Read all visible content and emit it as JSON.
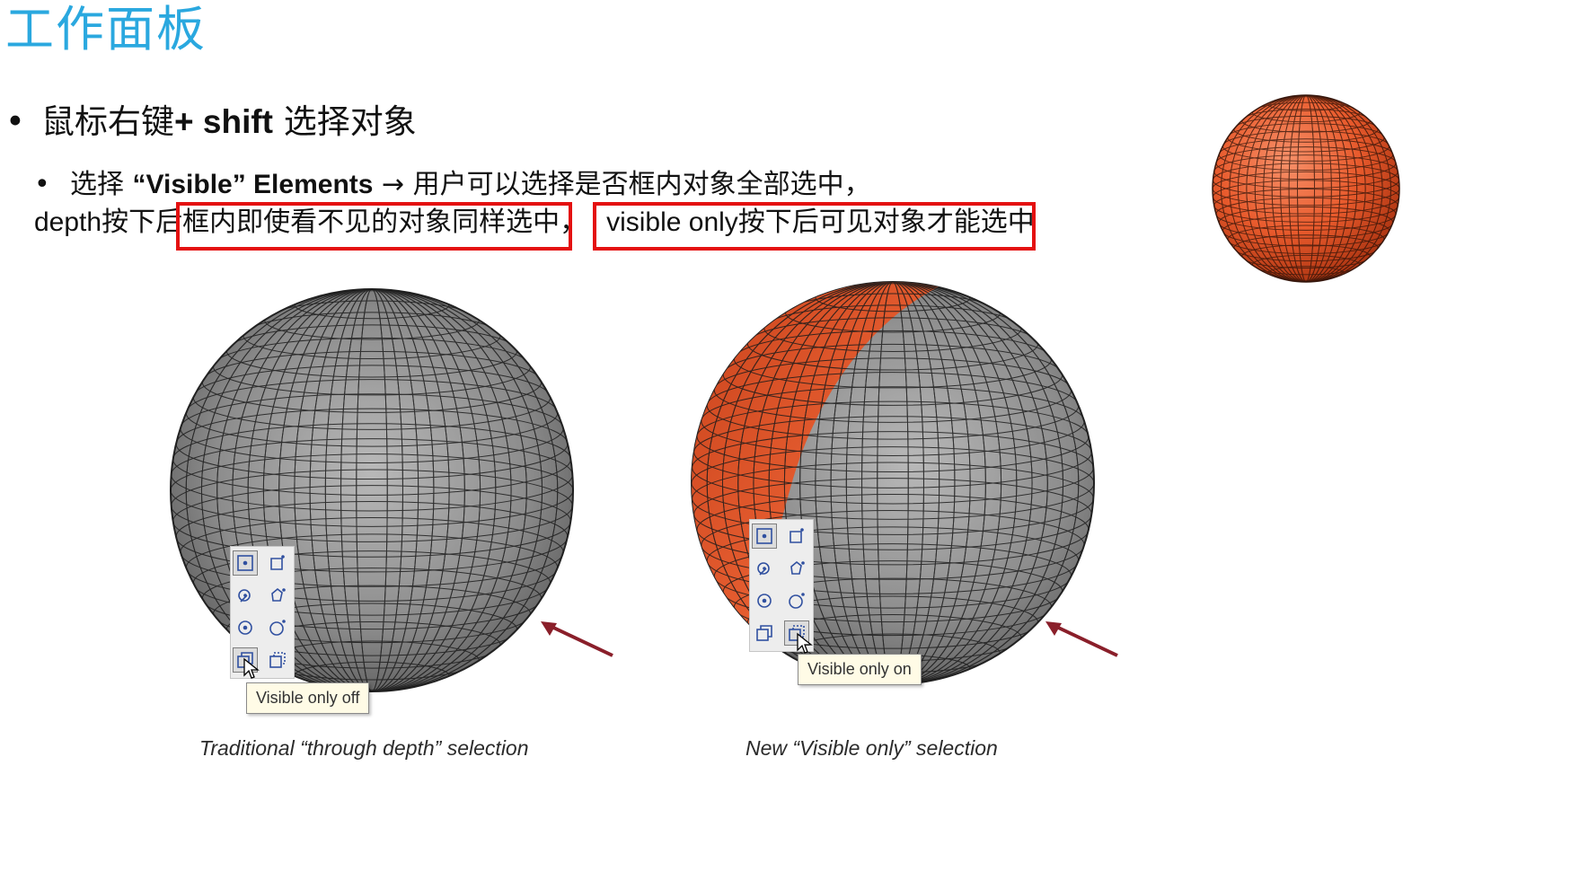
{
  "page": {
    "title": "工作面板"
  },
  "bullet1": {
    "bullet": "•",
    "prefix": "鼠标右键",
    "key": "+ shift",
    "suffix": "选择对象"
  },
  "bullet2": {
    "bullet": "•",
    "prefix": "选择",
    "term": "“Visible” Elements",
    "arrow": "→",
    "text": "用户可以选择是否框内对象全部选中，"
  },
  "line2": {
    "depth": "depth",
    "after_depth": "按下后",
    "highlight1": "框内即使看不见的对象同样选中，",
    "visible_only": "visible only",
    "highlight2_rest": "按下后可见对象才能选中"
  },
  "figures": {
    "left": {
      "caption": "Traditional “through depth” selection",
      "tooltip": "Visible only off"
    },
    "right": {
      "caption": "New “Visible only” selection",
      "tooltip": "Visible only on"
    }
  },
  "colors": {
    "title": "#2aa8df",
    "highlight_box": "#e41010",
    "selected_mesh": "#e8582b",
    "unselected_mesh": "#8e8e8e",
    "arrow": "#8a1f2a"
  },
  "toolbar_icons": [
    "rectangle-select-icon",
    "polygon-select-icon",
    "lasso-select-icon",
    "freehand-polygon-icon",
    "circle-select-icon",
    "circle-point-icon",
    "visible-only-icon",
    "through-depth-icon"
  ]
}
